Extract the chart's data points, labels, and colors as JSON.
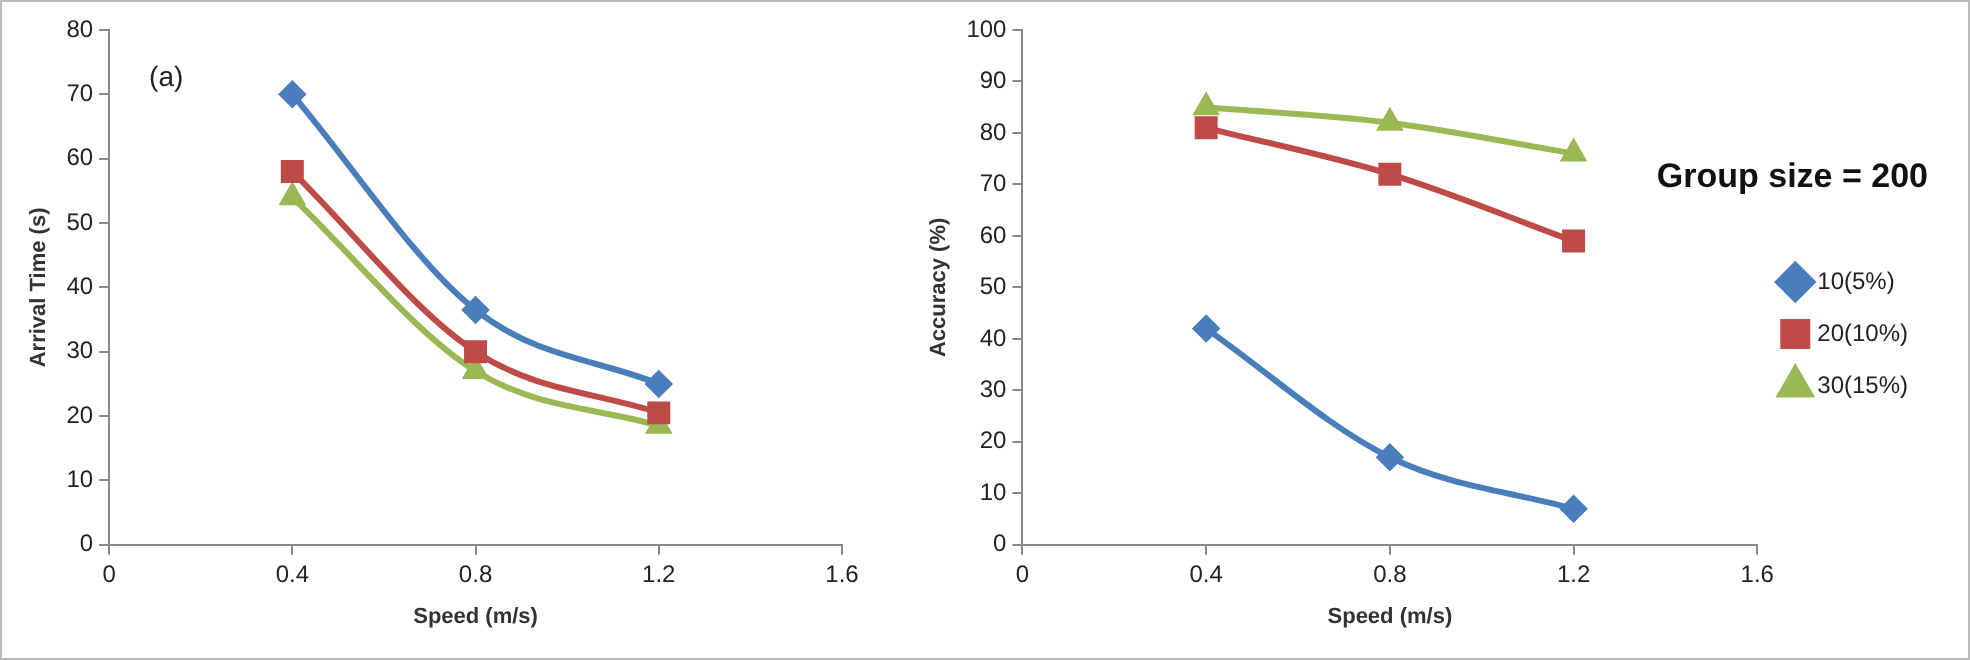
{
  "chart_data": [
    {
      "type": "line",
      "xlabel": "Speed (m/s)",
      "ylabel": "Arrival Time (s)",
      "annotations": [
        "(a)"
      ],
      "x": [
        0.4,
        0.8,
        1.2
      ],
      "xlim": [
        0,
        1.6
      ],
      "xticks": [
        0,
        0.4,
        0.8,
        1.2,
        1.6
      ],
      "ylim": [
        0,
        80
      ],
      "yticks": [
        0,
        10,
        20,
        30,
        40,
        50,
        60,
        70,
        80
      ],
      "grid": false,
      "legend": false,
      "series": [
        {
          "color": "#4a7ebb",
          "marker": "diamond",
          "values": [
            70,
            36.5,
            25
          ]
        },
        {
          "color": "#be4b48",
          "marker": "square",
          "values": [
            58,
            30,
            20.5
          ]
        },
        {
          "color": "#98b954",
          "marker": "triangle",
          "values": [
            54,
            27,
            18.5
          ]
        }
      ]
    },
    {
      "type": "line",
      "xlabel": "Speed (m/s)",
      "ylabel": "Accuracy (%)",
      "annotations": [
        "Group size = 200"
      ],
      "x": [
        0.4,
        0.8,
        1.2
      ],
      "xlim": [
        0,
        1.6
      ],
      "xticks": [
        0,
        0.4,
        0.8,
        1.2,
        1.6
      ],
      "ylim": [
        0,
        100
      ],
      "yticks": [
        0,
        10,
        20,
        30,
        40,
        50,
        60,
        70,
        80,
        90,
        100
      ],
      "grid": false,
      "legend": "right",
      "series": [
        {
          "name": "10(5%)",
          "color": "#4a7ebb",
          "marker": "diamond",
          "values": [
            42,
            17,
            7
          ]
        },
        {
          "name": "20(10%)",
          "color": "#be4b48",
          "marker": "square",
          "values": [
            81,
            72,
            59
          ]
        },
        {
          "name": "30(15%)",
          "color": "#98b954",
          "marker": "triangle",
          "values": [
            85,
            82,
            76
          ]
        }
      ]
    }
  ]
}
